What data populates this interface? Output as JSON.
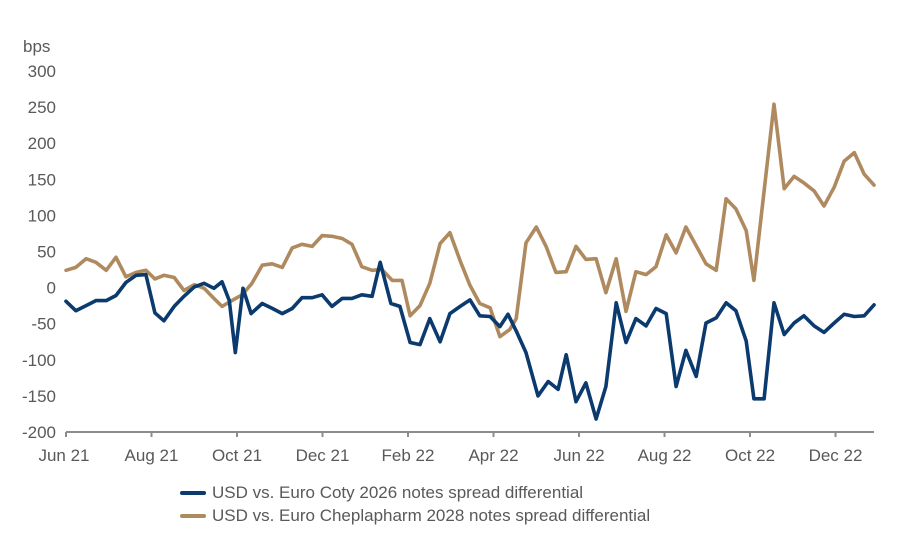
{
  "chart_data": {
    "type": "line",
    "title": "",
    "ylabel": "bps",
    "xlabel": "",
    "ylim": [
      -200,
      300
    ],
    "yticks": [
      300,
      250,
      200,
      150,
      100,
      50,
      0,
      -50,
      -100,
      -150,
      -200
    ],
    "xlim_months_from_jun21": [
      0,
      18.9
    ],
    "xtick_labels": [
      "Jun 21",
      "Aug 21",
      "Oct 21",
      "Dec 21",
      "Feb 22",
      "Apr 22",
      "Jun 22",
      "Aug 22",
      "Oct 22",
      "Dec 22"
    ],
    "xtick_months_from_jun21": [
      0,
      2,
      4,
      6,
      8,
      10,
      12,
      14,
      16,
      18
    ],
    "grid": false,
    "legend_position": "bottom",
    "series": [
      {
        "name": "USD vs. Euro Coty 2026 notes spread differential",
        "color": "#0b3a6e",
        "x": [
          0,
          0.23,
          0.47,
          0.7,
          0.94,
          1.17,
          1.4,
          1.64,
          1.87,
          2.08,
          2.29,
          2.53,
          2.76,
          3.0,
          3.23,
          3.46,
          3.65,
          3.82,
          3.96,
          4.14,
          4.33,
          4.59,
          4.83,
          5.06,
          5.29,
          5.52,
          5.76,
          5.99,
          6.22,
          6.46,
          6.69,
          6.92,
          7.16,
          7.35,
          7.6,
          7.81,
          8.05,
          8.28,
          8.51,
          8.75,
          8.98,
          9.22,
          9.45,
          9.68,
          9.92,
          10.15,
          10.34,
          10.53,
          10.76,
          11.04,
          11.28,
          11.51,
          11.7,
          11.93,
          12.16,
          12.4,
          12.63,
          12.87,
          13.1,
          13.33,
          13.57,
          13.8,
          14.04,
          14.27,
          14.5,
          14.74,
          14.97,
          15.21,
          15.44,
          15.67,
          15.91,
          16.09,
          16.33,
          16.56,
          16.8,
          17.03,
          17.26,
          17.5,
          17.73,
          17.97,
          18.2,
          18.44,
          18.67,
          18.9
        ],
        "values": [
          -19,
          -32,
          -25,
          -18,
          -18,
          -11,
          7,
          17,
          18,
          -35,
          -46,
          -26,
          -12,
          1,
          6,
          -1,
          8,
          -18,
          -90,
          -1,
          -36,
          -22,
          -29,
          -36,
          -29,
          -14,
          -14,
          -10,
          -26,
          -15,
          -15,
          -10,
          -12,
          35,
          -22,
          -26,
          -76,
          -79,
          -43,
          -75,
          -36,
          -26,
          -17,
          -39,
          -40,
          -54,
          -37,
          -60,
          -90,
          -150,
          -130,
          -141,
          -93,
          -158,
          -132,
          -182,
          -137,
          -21,
          -76,
          -43,
          -53,
          -29,
          -36,
          -137,
          -87,
          -123,
          -49,
          -42,
          -21,
          -32,
          -74,
          -154,
          -154,
          -21,
          -65,
          -49,
          -39,
          -53,
          -62,
          -49,
          -37,
          -40,
          -39,
          -24
        ]
      },
      {
        "name": "USD vs. Euro Cheplapharm 2028 notes spread differential",
        "color": "#b08a5f",
        "x": [
          0,
          0.23,
          0.47,
          0.7,
          0.94,
          1.17,
          1.4,
          1.64,
          1.87,
          2.08,
          2.29,
          2.53,
          2.76,
          3.0,
          3.23,
          3.46,
          3.65,
          3.88,
          4.12,
          4.35,
          4.59,
          4.82,
          5.06,
          5.29,
          5.52,
          5.76,
          5.99,
          6.22,
          6.46,
          6.69,
          6.92,
          7.16,
          7.39,
          7.63,
          7.86,
          8.05,
          8.28,
          8.51,
          8.75,
          8.98,
          9.22,
          9.45,
          9.68,
          9.92,
          10.15,
          10.38,
          10.53,
          10.76,
          11.0,
          11.23,
          11.46,
          11.7,
          11.93,
          12.16,
          12.4,
          12.63,
          12.87,
          13.1,
          13.33,
          13.57,
          13.8,
          14.04,
          14.27,
          14.5,
          14.74,
          14.97,
          15.21,
          15.44,
          15.67,
          15.91,
          16.09,
          16.33,
          16.56,
          16.8,
          17.03,
          17.26,
          17.5,
          17.73,
          17.97,
          18.2,
          18.44,
          18.67,
          18.9
        ],
        "values": [
          24,
          28,
          40,
          35,
          24,
          42,
          15,
          21,
          24,
          12,
          17,
          14,
          -4,
          4,
          -1,
          -15,
          -26,
          -18,
          -10,
          6,
          31,
          33,
          28,
          55,
          60,
          57,
          72,
          71,
          68,
          60,
          29,
          24,
          25,
          10,
          10,
          -39,
          -25,
          6,
          61,
          76,
          37,
          3,
          -22,
          -28,
          -68,
          -58,
          -43,
          62,
          84,
          57,
          21,
          22,
          57,
          39,
          40,
          -7,
          40,
          -33,
          22,
          18,
          29,
          73,
          48,
          84,
          58,
          33,
          24,
          123,
          109,
          79,
          10,
          134,
          254,
          137,
          154,
          145,
          134,
          113,
          139,
          175,
          187,
          157,
          142
        ]
      }
    ]
  },
  "legend": {
    "items": [
      {
        "label": "USD vs. Euro Coty 2026 notes spread differential",
        "color": "#0b3a6e"
      },
      {
        "label": "USD vs. Euro Cheplapharm 2028 notes spread differential",
        "color": "#b08a5f"
      }
    ]
  },
  "axis_color": "#8c8c8c"
}
